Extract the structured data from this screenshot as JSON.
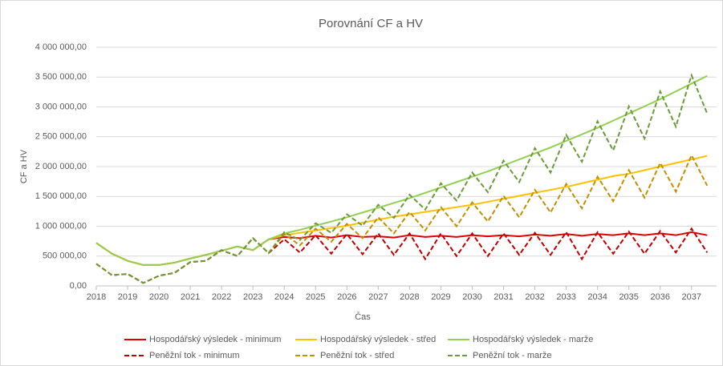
{
  "chart_data": {
    "type": "line",
    "title": "Porovnání CF a HV",
    "x_label": "Čas",
    "y_label": "CF a HV",
    "x": [
      2018,
      2018.5,
      2019,
      2019.5,
      2020,
      2020.5,
      2021,
      2021.5,
      2022,
      2022.5,
      2023,
      2023.5,
      2024,
      2024.5,
      2025,
      2025.5,
      2026,
      2026.5,
      2027,
      2027.5,
      2028,
      2028.5,
      2029,
      2029.5,
      2030,
      2030.5,
      2031,
      2031.5,
      2032,
      2032.5,
      2033,
      2033.5,
      2034,
      2034.5,
      2035,
      2035.5,
      2036,
      2036.5,
      2037,
      2037.5
    ],
    "xlim": [
      2018,
      2037.8
    ],
    "xticks": [
      2018,
      2019,
      2020,
      2021,
      2022,
      2023,
      2024,
      2025,
      2026,
      2027,
      2028,
      2029,
      2030,
      2031,
      2032,
      2033,
      2034,
      2035,
      2036,
      2037
    ],
    "ylim": [
      0,
      4000000
    ],
    "yticks": [
      {
        "value": 0,
        "label": "0,00"
      },
      {
        "value": 500000,
        "label": "500 000,00"
      },
      {
        "value": 1000000,
        "label": "1 000 000,00"
      },
      {
        "value": 1500000,
        "label": "1 500 000,00"
      },
      {
        "value": 2000000,
        "label": "2 000 000,00"
      },
      {
        "value": 2500000,
        "label": "2 500 000,00"
      },
      {
        "value": 3000000,
        "label": "3 000 000,00"
      },
      {
        "value": 3500000,
        "label": "3 500 000,00"
      },
      {
        "value": 4000000,
        "label": "4 000 000,00"
      }
    ],
    "grid": true,
    "legend": "bottom",
    "series": [
      {
        "name": "Hospodářský výsledek - minimum",
        "color": "#e00000",
        "line_style": "solid",
        "values": [
          720000,
          540000,
          420000,
          350000,
          350000,
          390000,
          460000,
          520000,
          590000,
          660000,
          600000,
          780000,
          820000,
          800000,
          840000,
          810000,
          850000,
          820000,
          830000,
          810000,
          850000,
          820000,
          840000,
          820000,
          850000,
          830000,
          850000,
          830000,
          860000,
          840000,
          870000,
          840000,
          870000,
          850000,
          880000,
          850000,
          880000,
          850000,
          900000,
          850000
        ]
      },
      {
        "name": "Hospodářský výsledek - střed",
        "color": "#ffc000",
        "line_style": "solid",
        "values": [
          720000,
          540000,
          420000,
          350000,
          350000,
          390000,
          460000,
          520000,
          590000,
          660000,
          600000,
          780000,
          850000,
          890000,
          930000,
          970000,
          1010000,
          1060000,
          1110000,
          1160000,
          1200000,
          1240000,
          1280000,
          1320000,
          1360000,
          1410000,
          1460000,
          1510000,
          1560000,
          1610000,
          1660000,
          1720000,
          1780000,
          1840000,
          1880000,
          1940000,
          2000000,
          2060000,
          2120000,
          2180000
        ]
      },
      {
        "name": "Hospodářský výsledek - marže",
        "color": "#92d050",
        "line_style": "solid",
        "values": [
          720000,
          540000,
          420000,
          350000,
          350000,
          390000,
          460000,
          520000,
          590000,
          660000,
          600000,
          780000,
          880000,
          940000,
          1010000,
          1080000,
          1150000,
          1230000,
          1310000,
          1390000,
          1470000,
          1560000,
          1650000,
          1740000,
          1830000,
          1920000,
          2020000,
          2120000,
          2220000,
          2320000,
          2430000,
          2540000,
          2650000,
          2770000,
          2890000,
          3010000,
          3130000,
          3260000,
          3390000,
          3520000
        ]
      },
      {
        "name": "Peněžní tok - minimum",
        "color": "#c00000",
        "line_style": "dashed",
        "values": [
          370000,
          180000,
          200000,
          50000,
          170000,
          220000,
          400000,
          420000,
          600000,
          500000,
          800000,
          550000,
          780000,
          560000,
          850000,
          540000,
          870000,
          530000,
          880000,
          520000,
          880000,
          450000,
          880000,
          500000,
          880000,
          500000,
          880000,
          520000,
          890000,
          520000,
          900000,
          450000,
          900000,
          540000,
          910000,
          540000,
          920000,
          560000,
          960000,
          560000
        ]
      },
      {
        "name": "Peněžní tok - střed",
        "color": "#bf9000",
        "line_style": "dashed",
        "values": [
          370000,
          180000,
          200000,
          50000,
          170000,
          220000,
          400000,
          420000,
          600000,
          500000,
          800000,
          550000,
          870000,
          680000,
          960000,
          740000,
          1040000,
          800000,
          1150000,
          880000,
          1240000,
          930000,
          1320000,
          1000000,
          1400000,
          1080000,
          1510000,
          1150000,
          1610000,
          1230000,
          1710000,
          1300000,
          1830000,
          1420000,
          1940000,
          1480000,
          2060000,
          1580000,
          2190000,
          1680000
        ]
      },
      {
        "name": "Peněžní tok - marže",
        "color": "#6a9a3a",
        "line_style": "dashed",
        "values": [
          370000,
          180000,
          200000,
          50000,
          170000,
          220000,
          400000,
          420000,
          600000,
          500000,
          800000,
          550000,
          900000,
          770000,
          1050000,
          890000,
          1200000,
          1010000,
          1360000,
          1140000,
          1530000,
          1280000,
          1720000,
          1430000,
          1900000,
          1570000,
          2100000,
          1740000,
          2310000,
          1900000,
          2530000,
          2080000,
          2760000,
          2270000,
          3010000,
          2470000,
          3260000,
          2670000,
          3530000,
          2890000
        ]
      }
    ]
  }
}
